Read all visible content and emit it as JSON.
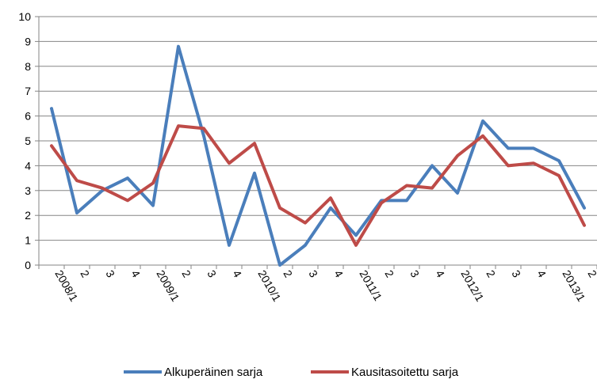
{
  "chart_data": {
    "type": "line",
    "categories": [
      "2008/1",
      "2",
      "3",
      "4",
      "2009/1",
      "2",
      "3",
      "4",
      "2010/1",
      "2",
      "3",
      "4",
      "2011/1",
      "2",
      "3",
      "4",
      "2012/1",
      "2",
      "3",
      "4",
      "2013/1",
      "2"
    ],
    "ylim": [
      0,
      10
    ],
    "yticks": [
      0,
      1,
      2,
      3,
      4,
      5,
      6,
      7,
      8,
      9,
      10
    ],
    "grid": true,
    "legend_position": "bottom",
    "series": [
      {
        "name": "Alkuperäinen sarja",
        "color": "#4a7ebb",
        "values": [
          6.3,
          2.1,
          3.0,
          3.5,
          2.4,
          8.8,
          5.2,
          0.8,
          3.7,
          0.0,
          0.8,
          2.3,
          1.2,
          2.6,
          2.6,
          4.0,
          2.9,
          5.8,
          4.7,
          4.7,
          4.2,
          2.3
        ]
      },
      {
        "name": "Kausitasoitettu sarja",
        "color": "#be4b48",
        "values": [
          4.8,
          3.4,
          3.1,
          2.6,
          3.3,
          5.6,
          5.5,
          4.1,
          4.9,
          2.3,
          1.7,
          2.7,
          0.8,
          2.5,
          3.2,
          3.1,
          4.4,
          5.2,
          4.0,
          4.1,
          3.6,
          1.6
        ]
      }
    ]
  }
}
